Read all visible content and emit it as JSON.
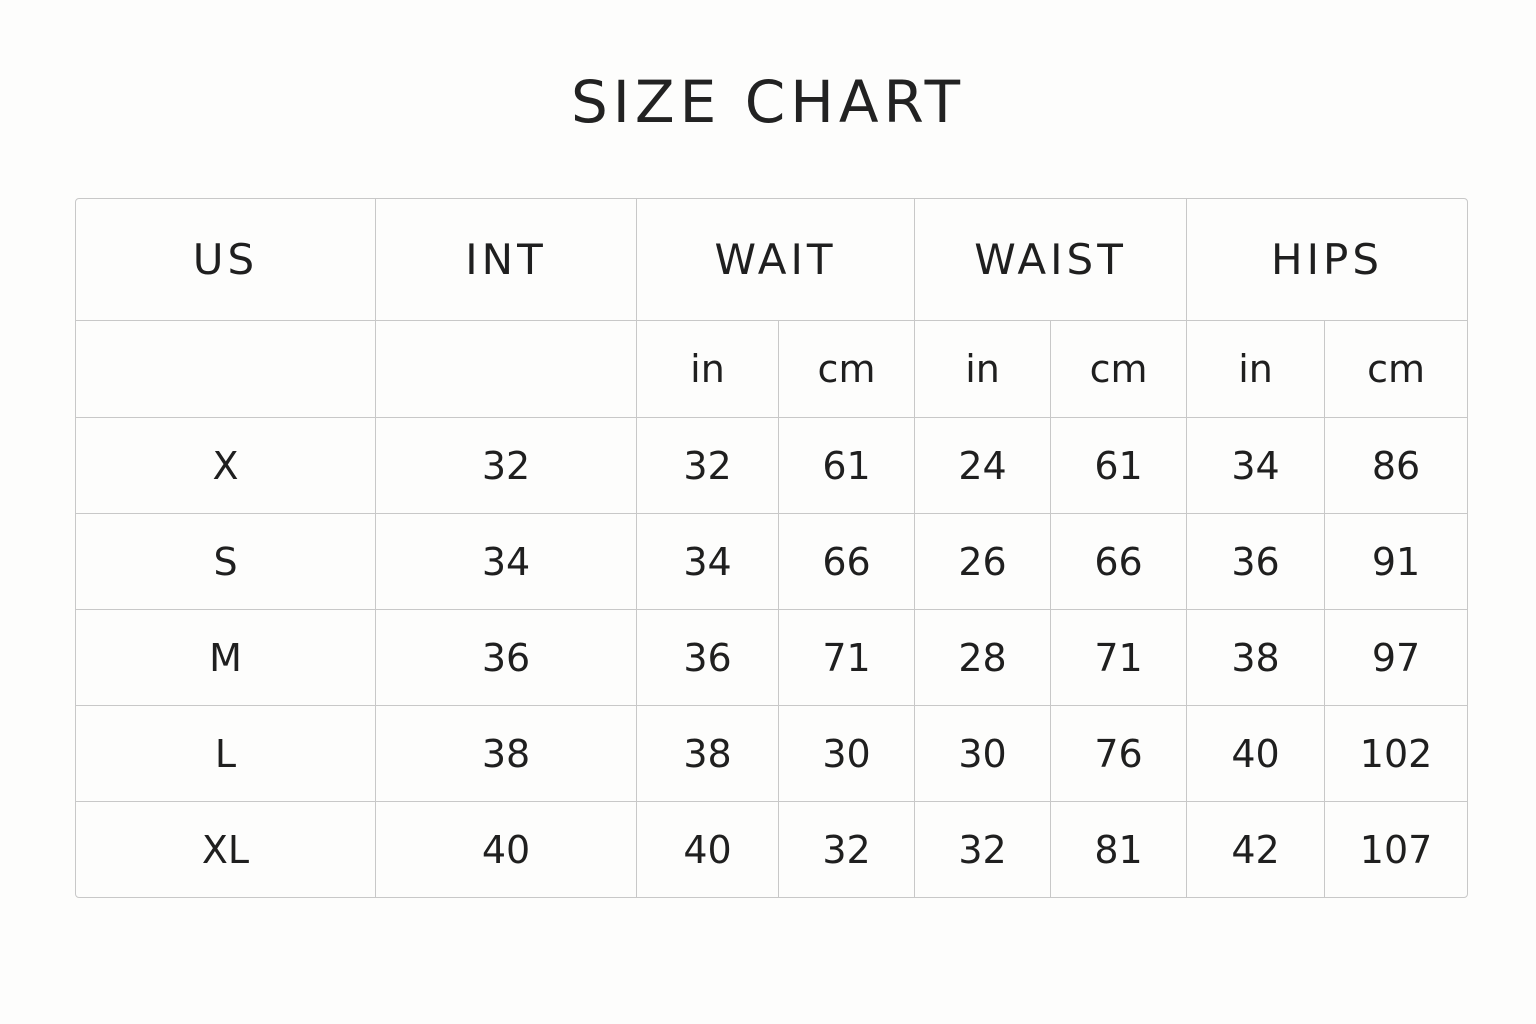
{
  "title": "SIZE CHART",
  "chart_data": {
    "type": "table",
    "title": "SIZE CHART",
    "headers": [
      "US",
      "INT",
      "WAIT",
      "WAIST",
      "HIPS"
    ],
    "units": [
      "",
      "",
      "in",
      "cm",
      "in",
      "cm",
      "in",
      "cm"
    ],
    "rows": [
      [
        "X",
        "32",
        "32",
        "61",
        "24",
        "61",
        "34",
        "86"
      ],
      [
        "S",
        "34",
        "34",
        "66",
        "26",
        "66",
        "36",
        "91"
      ],
      [
        "M",
        "36",
        "36",
        "71",
        "28",
        "71",
        "38",
        "97"
      ],
      [
        "L",
        "38",
        "38",
        "30",
        "30",
        "76",
        "40",
        "102"
      ],
      [
        "XL",
        "40",
        "40",
        "32",
        "32",
        "81",
        "42",
        "107"
      ]
    ]
  }
}
